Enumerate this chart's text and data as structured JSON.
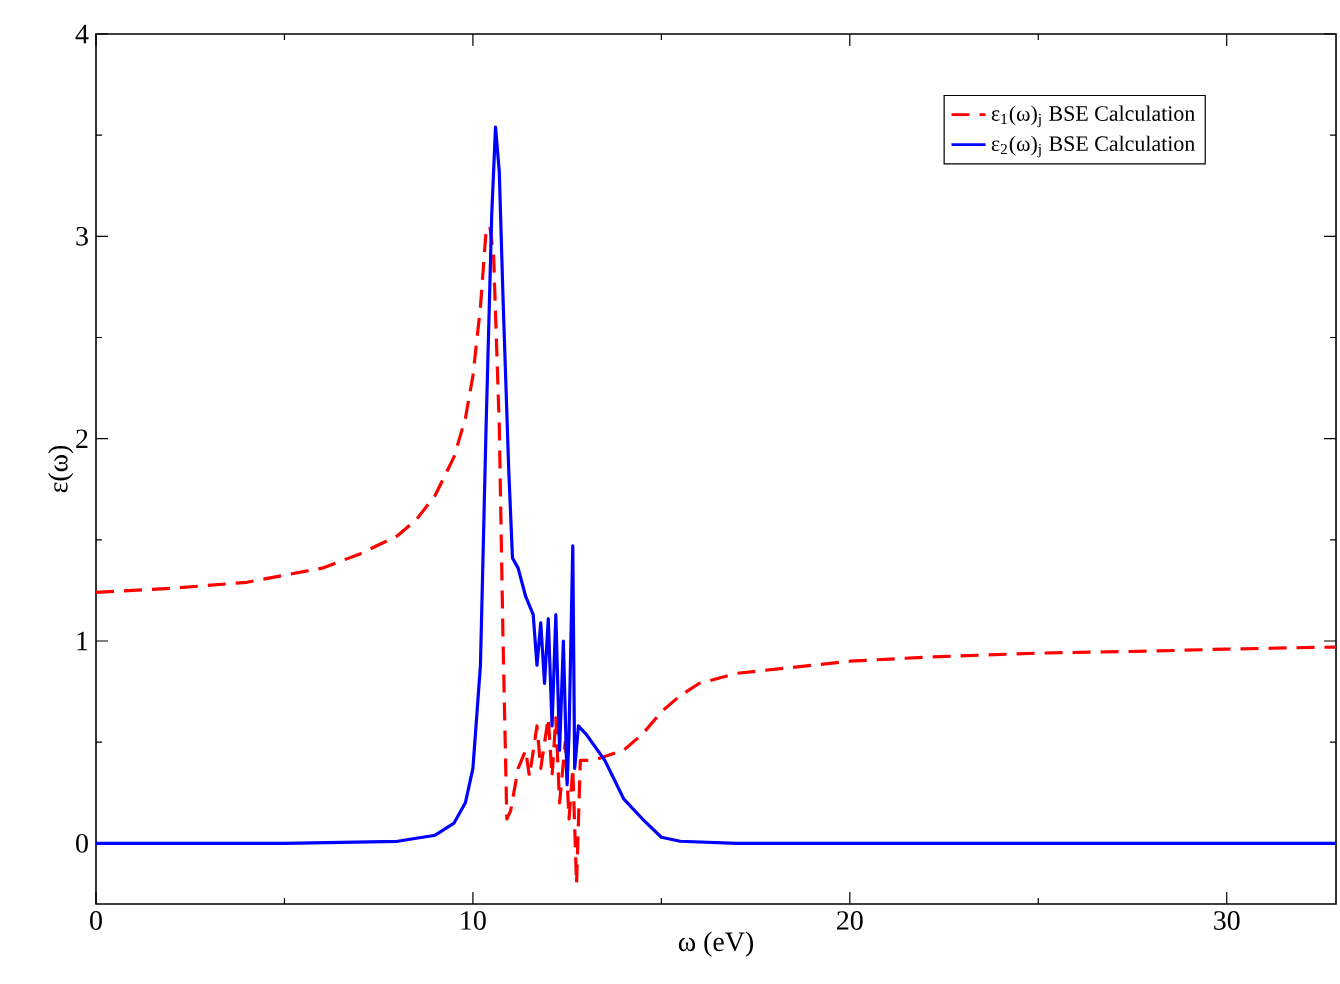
{
  "chart_data": {
    "type": "line",
    "xlabel": "ω (eV)",
    "ylabel": "ε(ω)",
    "xlim": [
      0,
      32.9
    ],
    "ylim": [
      -0.3,
      4
    ],
    "xticks": [
      0,
      10,
      20,
      30
    ],
    "yticks": [
      0,
      1,
      2,
      3,
      4
    ],
    "grid": false,
    "legend": "top right",
    "marker": "none",
    "series": [
      {
        "name": "ε$_{1}$(ω)$_{j}$ BSE Calculation",
        "color": "#ff0000",
        "line_style": "dashed",
        "x": [
          0,
          2,
          4,
          6,
          7,
          8,
          8.5,
          9,
          9.5,
          9.8,
          10,
          10.2,
          10.35,
          10.45,
          10.55,
          10.7,
          10.8,
          10.9,
          11.0,
          11.2,
          11.4,
          11.5,
          11.7,
          11.8,
          12.0,
          12.1,
          12.2,
          12.3,
          12.45,
          12.55,
          12.65,
          12.75,
          12.85,
          13.2,
          14,
          14.5,
          15,
          15.5,
          16,
          17,
          20,
          22,
          25,
          28,
          30,
          32.9
        ],
        "values": [
          1.24,
          1.26,
          1.29,
          1.36,
          1.43,
          1.52,
          1.6,
          1.72,
          1.91,
          2.1,
          2.31,
          2.65,
          3.03,
          3.05,
          2.9,
          2.06,
          1.0,
          0.12,
          0.16,
          0.37,
          0.46,
          0.33,
          0.58,
          0.37,
          0.62,
          0.33,
          0.62,
          0.2,
          0.5,
          0.12,
          0.37,
          -0.2,
          0.41,
          0.41,
          0.46,
          0.54,
          0.65,
          0.73,
          0.79,
          0.84,
          0.9,
          0.92,
          0.94,
          0.95,
          0.96,
          0.97
        ]
      },
      {
        "name": "ε$_{2}$(ω)$_{j}$ BSE Calculation",
        "color": "#0000ff",
        "line_style": "solid",
        "x": [
          0,
          5,
          8,
          9,
          9.5,
          9.8,
          10,
          10.2,
          10.35,
          10.5,
          10.6,
          10.7,
          10.8,
          10.95,
          11.05,
          11.2,
          11.4,
          11.6,
          11.7,
          11.8,
          11.9,
          12.0,
          12.1,
          12.2,
          12.3,
          12.4,
          12.5,
          12.55,
          12.65,
          12.7,
          12.8,
          13.0,
          13.5,
          14,
          14.5,
          15,
          15.5,
          17,
          32.9
        ],
        "values": [
          0,
          0,
          0.01,
          0.04,
          0.1,
          0.2,
          0.37,
          0.88,
          2.06,
          3.11,
          3.54,
          3.32,
          2.69,
          1.85,
          1.41,
          1.36,
          1.22,
          1.13,
          0.88,
          1.09,
          0.79,
          1.11,
          0.58,
          1.13,
          0.46,
          1.0,
          0.29,
          0.54,
          1.47,
          0.37,
          0.58,
          0.54,
          0.41,
          0.22,
          0.12,
          0.03,
          0.01,
          0,
          0
        ]
      }
    ]
  }
}
